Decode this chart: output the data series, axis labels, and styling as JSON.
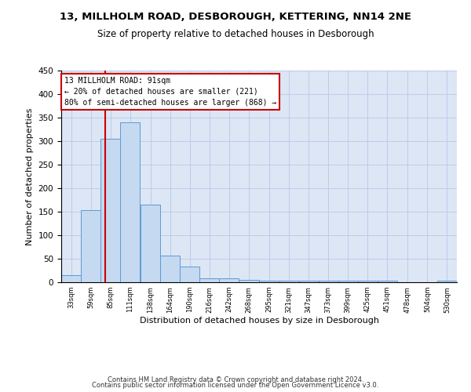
{
  "title": "13, MILLHOLM ROAD, DESBOROUGH, KETTERING, NN14 2NE",
  "subtitle": "Size of property relative to detached houses in Desborough",
  "xlabel": "Distribution of detached houses by size in Desborough",
  "ylabel": "Number of detached properties",
  "bar_color": "#c5d9f0",
  "bar_edge_color": "#5b9bd5",
  "grid_color": "#b8c8e8",
  "background_color": "#dce6f5",
  "redline_color": "#cc0000",
  "annotation_text": "13 MILLHOLM ROAD: 91sqm\n← 20% of detached houses are smaller (221)\n80% of semi-detached houses are larger (868) →",
  "annotation_box_color": "white",
  "annotation_box_edge": "#cc0000",
  "footer1": "Contains HM Land Registry data © Crown copyright and database right 2024.",
  "footer2": "Contains public sector information licensed under the Open Government Licence v3.0.",
  "bins": [
    33,
    59,
    85,
    111,
    138,
    164,
    190,
    216,
    242,
    268,
    295,
    321,
    347,
    373,
    399,
    425,
    451,
    478,
    504,
    530,
    556
  ],
  "counts": [
    15,
    153,
    305,
    340,
    165,
    57,
    33,
    9,
    8,
    5,
    3,
    4,
    4,
    4,
    4,
    4,
    4,
    0,
    0,
    4
  ],
  "ylim": [
    0,
    450
  ],
  "yticks": [
    0,
    50,
    100,
    150,
    200,
    250,
    300,
    350,
    400,
    450
  ],
  "redline_x": 91,
  "figsize": [
    6.0,
    5.0
  ],
  "dpi": 100
}
